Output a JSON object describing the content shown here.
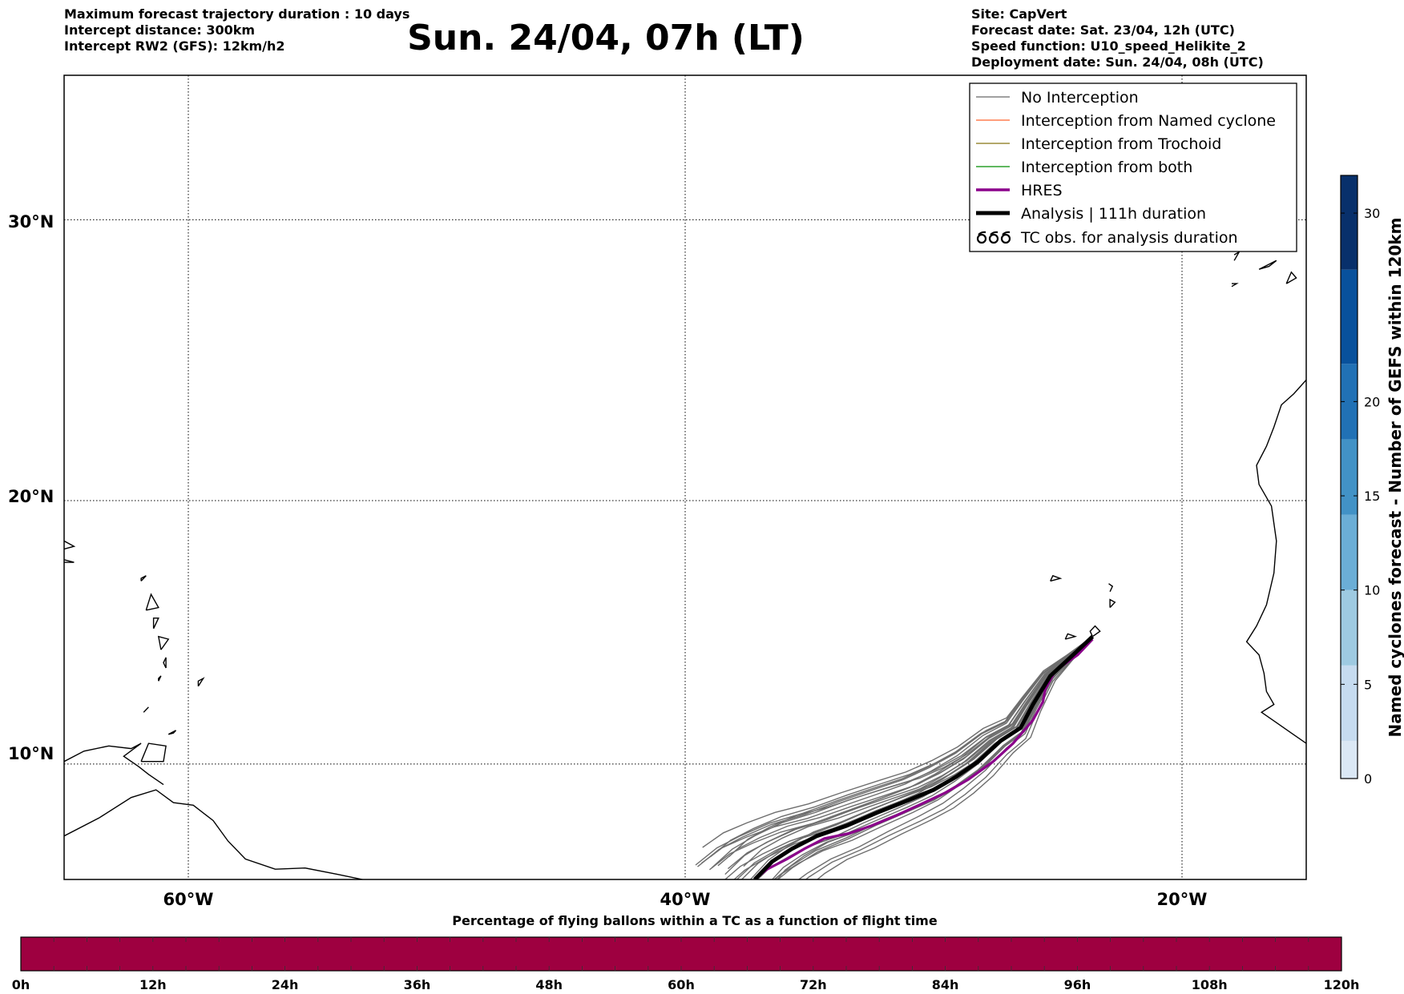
{
  "header_left": [
    "Maximum forecast trajectory duration : 10 days",
    "Intercept distance: 300km",
    "Intercept RW2 (GFS):  12km/h2"
  ],
  "title": "Sun. 24/04, 07h (LT)",
  "header_right": [
    "Site: CapVert",
    "Forecast date: Sat. 23/04, 12h (UTC)",
    "Speed function: U10_speed_Helikite_2",
    "Deployment date: Sun. 24/04, 08h (UTC)"
  ],
  "map": {
    "lat_labels": [
      "30°N",
      "20°N",
      "10°N"
    ],
    "lon_labels": [
      "60°W",
      "40°W",
      "20°W"
    ],
    "lon_range": [
      -65,
      -15
    ],
    "lat_range": [
      5.5,
      34.8
    ],
    "gridlines": {
      "lats": [
        10,
        20,
        30
      ],
      "lons": [
        -60,
        -40,
        -20
      ],
      "style": "dotted"
    }
  },
  "legend": {
    "items": [
      {
        "label": "No Interception",
        "color": "#808080",
        "kind": "line-thin"
      },
      {
        "label": "Interception from Named cyclone",
        "color": "#ff7f50",
        "kind": "line-thin"
      },
      {
        "label": "Interception from Trochoid",
        "color": "#9a8c3a",
        "kind": "line-thin"
      },
      {
        "label": "Interception from both",
        "color": "#2ca02c",
        "kind": "line-thin"
      },
      {
        "label": "HRES",
        "color": "#8b008b",
        "kind": "line-medium"
      },
      {
        "label": "Analysis | 111h duration",
        "color": "#000000",
        "kind": "line-thick"
      },
      {
        "label": "TC obs. for analysis duration",
        "color": "#000000",
        "kind": "tc-symbol"
      }
    ]
  },
  "right_colorbar": {
    "label": "Named cyclones forecast - Number of GEFS within 120km",
    "ticks": [
      "0",
      "5",
      "10",
      "15",
      "20",
      "30"
    ],
    "tick_values": [
      0,
      5,
      10,
      15,
      20,
      30
    ],
    "max": 32,
    "colors": [
      "#dbe8f5",
      "#c6dbef",
      "#9ecae1",
      "#6baed6",
      "#4292c6",
      "#2171b5",
      "#08519c",
      "#08306b"
    ]
  },
  "bottom_colorbar": {
    "title": "Percentage of flying ballons within a TC as a function of flight time",
    "ticks": [
      "0h",
      "12h",
      "24h",
      "36h",
      "48h",
      "60h",
      "72h",
      "84h",
      "96h",
      "108h",
      "120h"
    ],
    "fill_color": "#9e0040"
  },
  "trajectories": {
    "origin": {
      "lon": -23.6,
      "lat": 14.9
    },
    "analysis": [
      [
        -23.6,
        14.9
      ],
      [
        -24.5,
        14.1
      ],
      [
        -25.3,
        13.4
      ],
      [
        -26.0,
        12.3
      ],
      [
        -26.5,
        11.4
      ],
      [
        -27.3,
        10.9
      ],
      [
        -28.2,
        10.1
      ],
      [
        -29.1,
        9.5
      ],
      [
        -30.0,
        9.0
      ],
      [
        -31.0,
        8.6
      ],
      [
        -32.3,
        8.1
      ],
      [
        -33.5,
        7.6
      ],
      [
        -34.7,
        7.2
      ],
      [
        -35.7,
        6.7
      ],
      [
        -36.5,
        6.2
      ],
      [
        -37.2,
        5.5
      ]
    ],
    "hres": [
      [
        -23.6,
        14.8
      ],
      [
        -24.2,
        14.2
      ],
      [
        -25.1,
        13.6
      ],
      [
        -25.5,
        12.9
      ],
      [
        -25.6,
        12.4
      ],
      [
        -26.0,
        11.7
      ],
      [
        -26.8,
        10.8
      ],
      [
        -27.6,
        10.1
      ],
      [
        -28.6,
        9.4
      ],
      [
        -29.5,
        8.9
      ],
      [
        -30.6,
        8.4
      ],
      [
        -31.5,
        8.0
      ],
      [
        -32.5,
        7.6
      ],
      [
        -33.4,
        7.3
      ],
      [
        -34.4,
        7.1
      ],
      [
        -35.2,
        6.7
      ],
      [
        -35.9,
        6.3
      ],
      [
        -36.7,
        5.9
      ],
      [
        -37.2,
        5.5
      ]
    ]
  }
}
